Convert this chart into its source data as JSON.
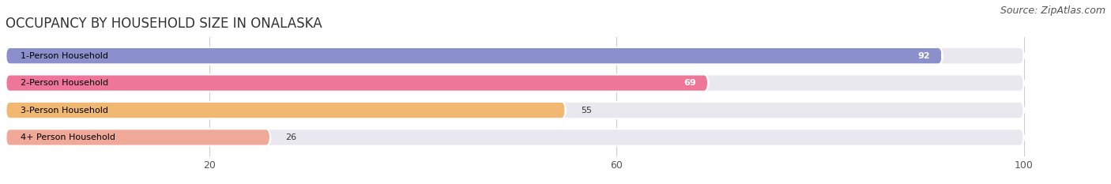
{
  "title": "OCCUPANCY BY HOUSEHOLD SIZE IN ONALASKA",
  "source": "Source: ZipAtlas.com",
  "categories": [
    "1-Person Household",
    "2-Person Household",
    "3-Person Household",
    "4+ Person Household"
  ],
  "values": [
    92,
    69,
    55,
    26
  ],
  "bar_colors": [
    "#8b8fcc",
    "#ee7799",
    "#f0b870",
    "#f0a898"
  ],
  "label_colors": [
    "white",
    "white",
    "black",
    "black"
  ],
  "xlim_max": 108,
  "data_max": 100,
  "xticks": [
    20,
    60,
    100
  ],
  "background_color": "#ffffff",
  "bar_background_color": "#e8e8ee",
  "title_fontsize": 12,
  "source_fontsize": 9,
  "bar_height": 0.62,
  "figsize": [
    14.06,
    2.33
  ],
  "dpi": 100
}
